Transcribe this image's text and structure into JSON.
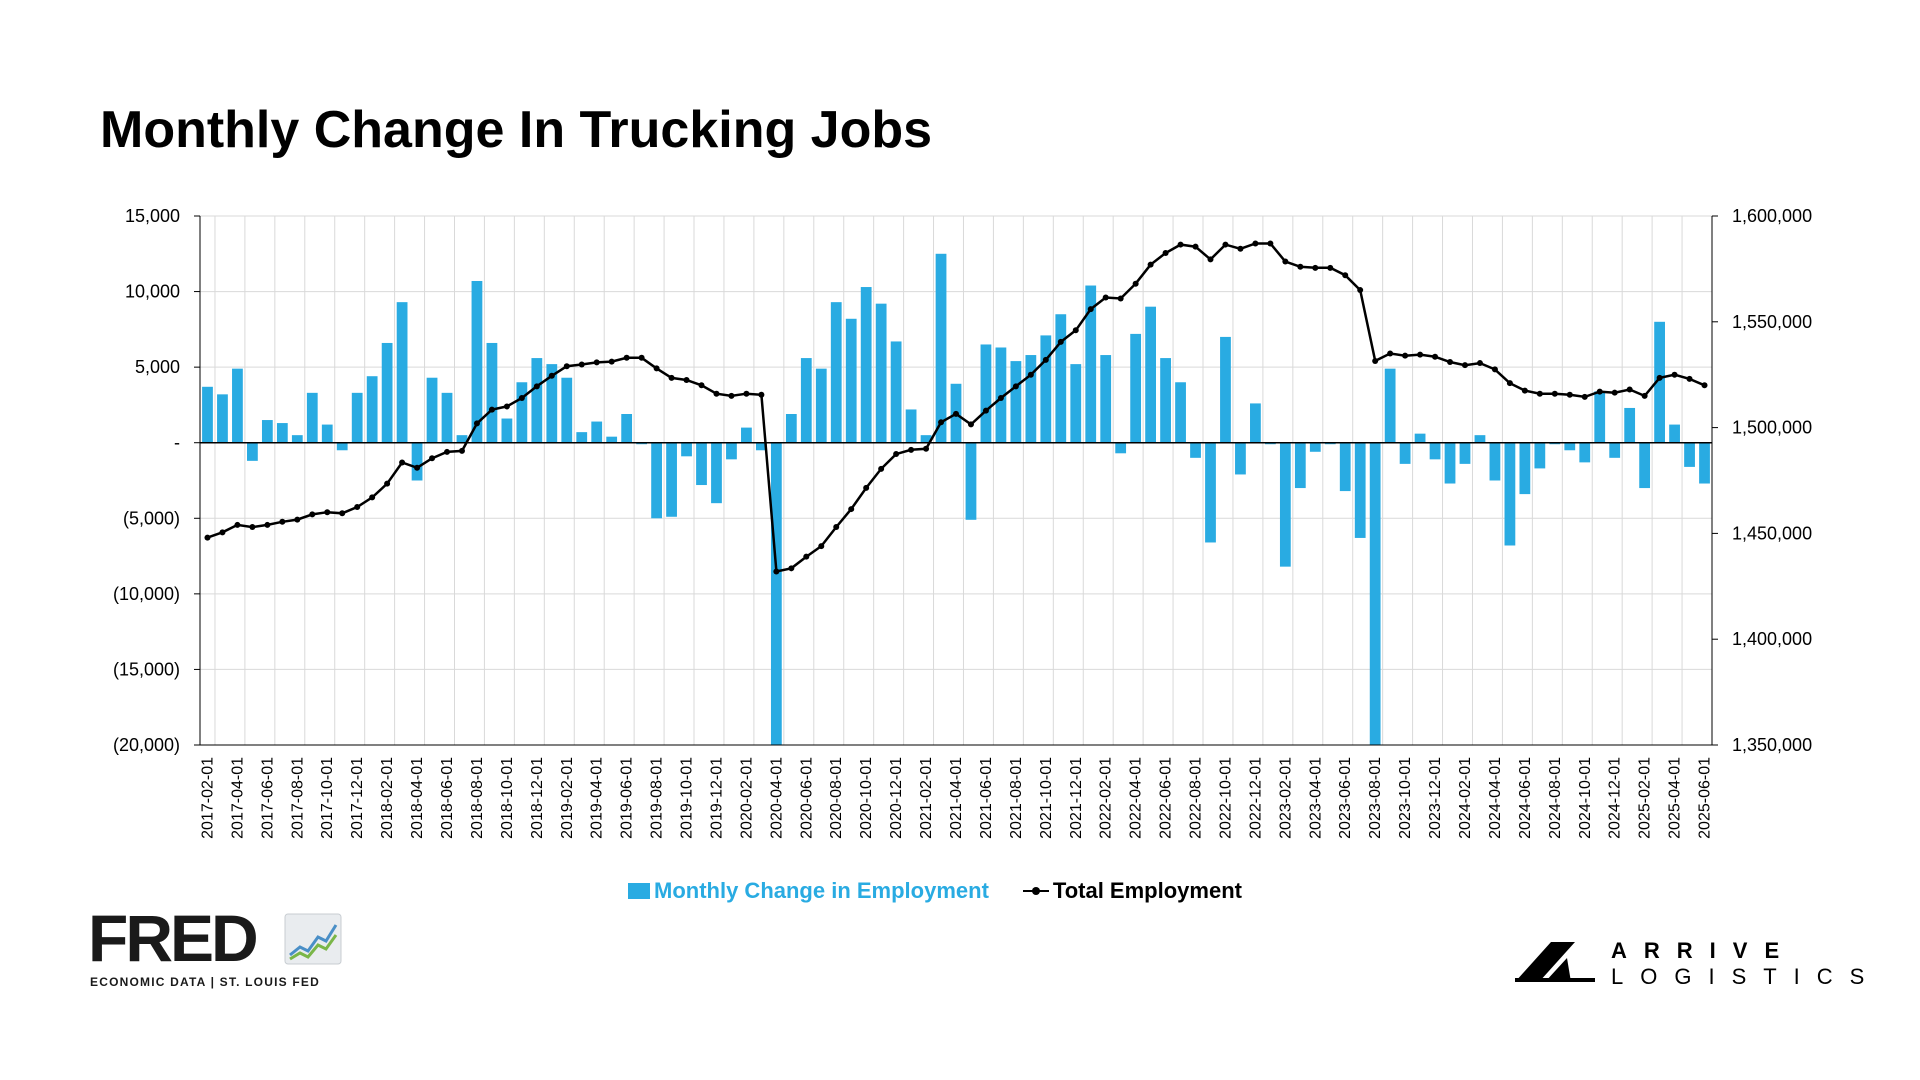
{
  "title": "Monthly Change In Trucking Jobs",
  "legend": {
    "bar_label": "Monthly Change in Employment",
    "line_label": "Total Employment"
  },
  "logos": {
    "fred_word": "FRED",
    "fred_tagline": "ECONOMIC DATA  |  ST. LOUIS FED",
    "arrive_line1": "ARRIVE",
    "arrive_line2": "LOGISTICS"
  },
  "colors": {
    "bar": "#29abe2",
    "line": "#000000",
    "grid": "#d9d9d9"
  },
  "chart_data": {
    "type": "bar",
    "left_axis": {
      "ylim": [
        -20000,
        15000
      ],
      "ticks": [
        15000,
        10000,
        5000,
        0,
        -5000,
        -10000,
        -15000,
        -20000
      ],
      "tick_labels": [
        "15,000",
        "10,000",
        "5,000",
        "-",
        "(5,000)",
        "(10,000)",
        "(15,000)",
        "(20,000)"
      ]
    },
    "right_axis": {
      "ylim": [
        1350000,
        1600000
      ],
      "ticks": [
        1600000,
        1550000,
        1500000,
        1450000,
        1400000,
        1350000
      ],
      "tick_labels": [
        "1,600,000",
        "1,550,000",
        "1,500,000",
        "1,450,000",
        "1,400,000",
        "1,350,000"
      ]
    },
    "x_tick_labels": [
      "2017-02-01",
      "2017-04-01",
      "2017-06-01",
      "2017-08-01",
      "2017-10-01",
      "2017-12-01",
      "2018-02-01",
      "2018-04-01",
      "2018-06-01",
      "2018-08-01",
      "2018-10-01",
      "2018-12-01",
      "2019-02-01",
      "2019-04-01",
      "2019-06-01",
      "2019-08-01",
      "2019-10-01",
      "2019-12-01",
      "2020-02-01",
      "2020-04-01",
      "2020-06-01",
      "2020-08-01",
      "2020-10-01",
      "2020-12-01",
      "2021-02-01",
      "2021-04-01",
      "2021-06-01",
      "2021-08-01",
      "2021-10-01",
      "2021-12-01",
      "2022-02-01",
      "2022-04-01",
      "2022-06-01",
      "2022-08-01",
      "2022-10-01",
      "2022-12-01",
      "2023-02-01",
      "2023-04-01",
      "2023-06-01",
      "2023-08-01",
      "2023-10-01",
      "2023-12-01",
      "2024-02-01",
      "2024-04-01",
      "2024-06-01",
      "2024-08-01",
      "2024-10-01",
      "2024-12-01",
      "2025-02-01",
      "2025-04-01",
      "2025-06-01"
    ],
    "grid": true,
    "legend_position": "bottom-center",
    "series": [
      {
        "name": "Monthly Change in Employment",
        "type": "bar",
        "axis": "left",
        "start": "2017-02",
        "values": [
          3700,
          3200,
          4900,
          -1200,
          1500,
          1300,
          500,
          3300,
          1200,
          -500,
          3300,
          4400,
          6600,
          9300,
          -2500,
          4300,
          3300,
          500,
          10700,
          6600,
          1600,
          4000,
          5600,
          5200,
          4300,
          700,
          1400,
          400,
          1900,
          -100,
          -5000,
          -4900,
          -900,
          -2800,
          -4000,
          -1100,
          1000,
          -500,
          -20000,
          1900,
          5600,
          4900,
          9300,
          8200,
          10300,
          9200,
          6700,
          2200,
          500,
          12500,
          3900,
          -5100,
          6500,
          6300,
          5400,
          5800,
          7100,
          8500,
          5200,
          10400,
          5800,
          -700,
          7200,
          9000,
          5600,
          4000,
          -1000,
          -6600,
          7000,
          -2100,
          2600,
          -100,
          -8200,
          -3000,
          -600,
          -100,
          -3200,
          -6300,
          -20000,
          4900,
          -1400,
          600,
          -1100,
          -2700,
          -1400,
          500,
          -2500,
          -6800,
          -3400,
          -1700,
          -100,
          -500,
          -1300,
          3400,
          -1000,
          2300,
          -3000,
          8000,
          1200,
          -1600,
          -2700
        ]
      },
      {
        "name": "Total Employment",
        "type": "line",
        "axis": "right",
        "start": "2017-02",
        "values": [
          1448000,
          1450500,
          1454000,
          1453000,
          1454000,
          1455500,
          1456500,
          1459000,
          1460000,
          1459500,
          1462500,
          1467000,
          1473500,
          1483500,
          1481000,
          1485500,
          1488500,
          1489000,
          1502000,
          1508500,
          1510000,
          1514000,
          1519500,
          1524500,
          1529000,
          1529800,
          1530800,
          1531200,
          1533000,
          1533000,
          1528000,
          1523500,
          1522500,
          1520000,
          1516000,
          1515000,
          1516000,
          1515500,
          1432000,
          1433500,
          1439000,
          1444000,
          1453000,
          1461500,
          1471500,
          1480500,
          1487500,
          1489500,
          1490000,
          1502500,
          1506500,
          1501500,
          1508000,
          1514000,
          1519500,
          1525000,
          1532000,
          1540500,
          1546000,
          1556000,
          1561500,
          1561000,
          1568000,
          1577000,
          1582500,
          1586500,
          1585500,
          1579500,
          1586500,
          1584500,
          1587000,
          1587000,
          1578500,
          1576000,
          1575500,
          1575500,
          1572000,
          1565000,
          1531500,
          1535000,
          1534000,
          1534500,
          1533500,
          1531000,
          1529500,
          1530500,
          1527500,
          1521000,
          1517500,
          1516000,
          1516000,
          1515500,
          1514500,
          1517000,
          1516500,
          1518000,
          1515000,
          1523500,
          1525000,
          1523000,
          1520000
        ]
      }
    ]
  }
}
